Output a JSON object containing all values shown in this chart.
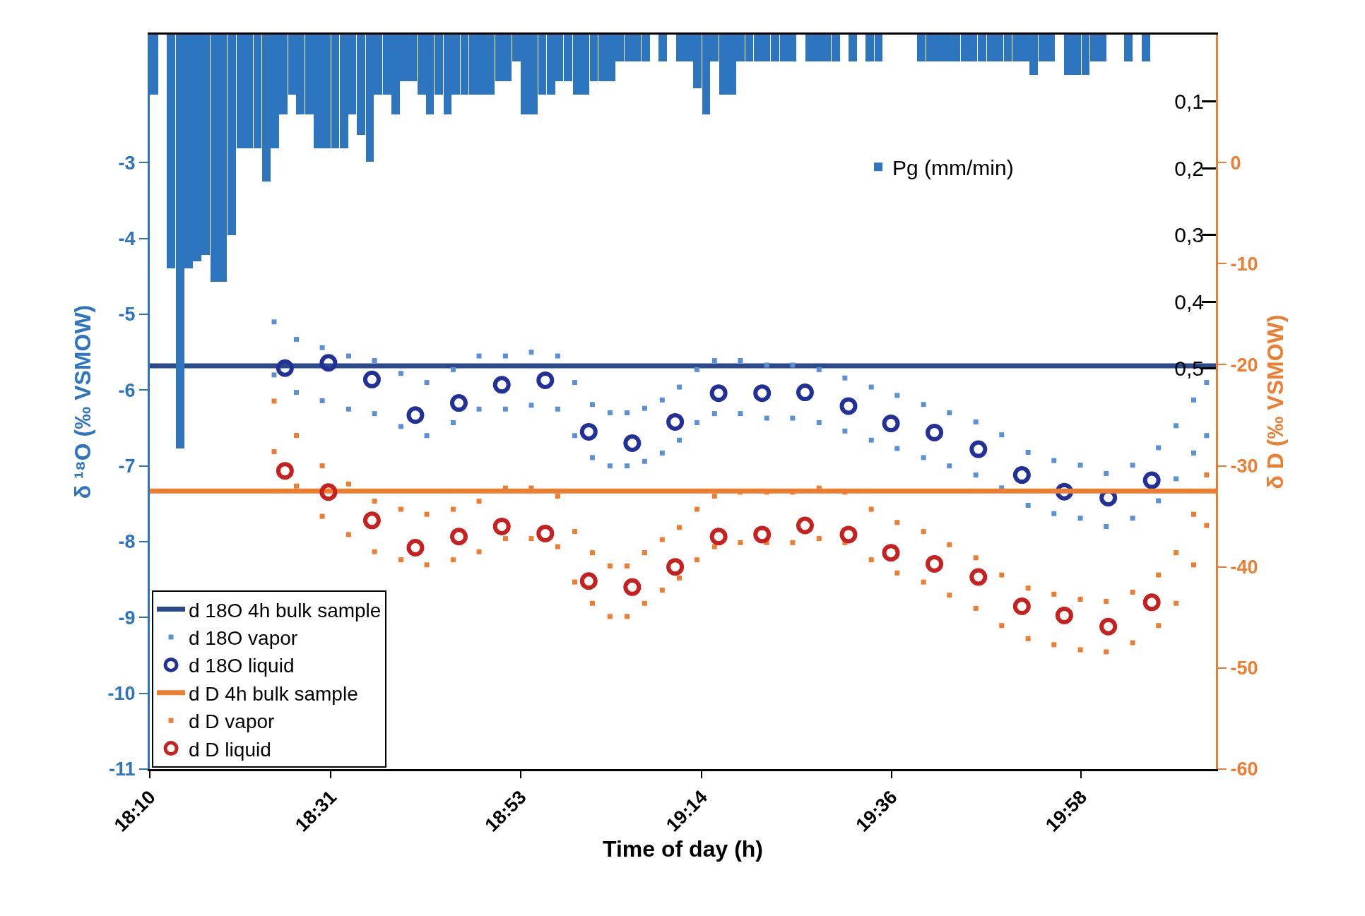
{
  "chart_data": {
    "type": "scatter",
    "xlabel": "Time of day (h)",
    "ylabel": "δ ¹⁸O (‰ VSMOW)",
    "y2label": "δ D (‰ VSMOW)",
    "legend": "bottom left",
    "xlim": [
      18.1667,
      20.227
    ],
    "xticks": [
      {
        "value": 18.1667,
        "label": "18:10"
      },
      {
        "value": 18.5167,
        "label": "18:31"
      },
      {
        "value": 18.8833,
        "label": "18:53"
      },
      {
        "value": 19.2333,
        "label": "19:14"
      },
      {
        "value": 19.6,
        "label": "19:36"
      },
      {
        "value": 19.9667,
        "label": "19:58"
      }
    ],
    "ylim": [
      -11,
      -1.31
    ],
    "yticks": [
      -11,
      -10,
      -9,
      -8,
      -7,
      -6,
      -5,
      -4,
      -3
    ],
    "y2lim": [
      -60,
      12.65
    ],
    "y2ticks": [
      -60,
      -50,
      -40,
      -30,
      -20,
      -10,
      0
    ],
    "y3lim": [
      1.1,
      0
    ],
    "y3ticks": [
      {
        "value": 0.1,
        "label": "0,1"
      },
      {
        "value": 0.2,
        "label": "0,2"
      },
      {
        "value": 0.3,
        "label": "0,3"
      },
      {
        "value": 0.4,
        "label": "0,4"
      },
      {
        "value": 0.5,
        "label": "0,5"
      }
    ],
    "series": [
      {
        "name": "Pg (mm/min)",
        "type": "bar",
        "axis": "y3",
        "color": "#2e75c0",
        "x": [
          18.175,
          18.208,
          18.225,
          18.242,
          18.258,
          18.275,
          18.292,
          18.308,
          18.325,
          18.342,
          18.358,
          18.375,
          18.392,
          18.408,
          18.425,
          18.442,
          18.458,
          18.475,
          18.492,
          18.508,
          18.525,
          18.542,
          18.558,
          18.575,
          18.592,
          18.608,
          18.625,
          18.642,
          18.658,
          18.675,
          18.692,
          18.708,
          18.725,
          18.742,
          18.758,
          18.775,
          18.792,
          18.808,
          18.825,
          18.842,
          18.858,
          18.875,
          18.892,
          18.908,
          18.925,
          18.942,
          18.958,
          18.975,
          18.992,
          19.008,
          19.025,
          19.042,
          19.058,
          19.075,
          19.092,
          19.108,
          19.125,
          19.158,
          19.192,
          19.208,
          19.225,
          19.242,
          19.258,
          19.275,
          19.292,
          19.308,
          19.325,
          19.342,
          19.358,
          19.375,
          19.392,
          19.408,
          19.442,
          19.458,
          19.475,
          19.492,
          19.525,
          19.558,
          19.575,
          19.658,
          19.675,
          19.692,
          19.708,
          19.725,
          19.742,
          19.758,
          19.775,
          19.792,
          19.808,
          19.825,
          19.842,
          19.858,
          19.875,
          19.892,
          19.908,
          19.942,
          19.958,
          19.975,
          19.992,
          20.008,
          20.058,
          20.092
        ],
        "values": [
          0.09,
          0.35,
          0.62,
          0.35,
          0.34,
          0.33,
          0.37,
          0.37,
          0.3,
          0.17,
          0.17,
          0.17,
          0.22,
          0.17,
          0.12,
          0.09,
          0.12,
          0.12,
          0.17,
          0.17,
          0.17,
          0.17,
          0.12,
          0.15,
          0.19,
          0.09,
          0.09,
          0.12,
          0.07,
          0.07,
          0.09,
          0.12,
          0.09,
          0.12,
          0.09,
          0.09,
          0.09,
          0.09,
          0.09,
          0.07,
          0.07,
          0.04,
          0.12,
          0.12,
          0.09,
          0.09,
          0.07,
          0.07,
          0.09,
          0.09,
          0.07,
          0.07,
          0.07,
          0.04,
          0.04,
          0.04,
          0.04,
          0.04,
          0.04,
          0.04,
          0.08,
          0.12,
          0.04,
          0.09,
          0.09,
          0.04,
          0.04,
          0.04,
          0.04,
          0.04,
          0.04,
          0.04,
          0.04,
          0.04,
          0.04,
          0.04,
          0.04,
          0.04,
          0.04,
          0.04,
          0.04,
          0.04,
          0.04,
          0.04,
          0.04,
          0.04,
          0.04,
          0.04,
          0.04,
          0.04,
          0.04,
          0.04,
          0.06,
          0.04,
          0.04,
          0.06,
          0.06,
          0.06,
          0.04,
          0.04,
          0.04,
          0.04
        ]
      },
      {
        "name": "d 18O 4h bulk sample",
        "type": "line",
        "axis": "y",
        "color": "#2b4a8c",
        "marker": "none",
        "x": [
          18.1667,
          20.227
        ],
        "values": [
          -5.68,
          -5.68
        ]
      },
      {
        "name": "d 18O vapor",
        "axis": "y",
        "color": "#5b8fd6",
        "marker": "square",
        "x": [
          18.407,
          18.407,
          18.45,
          18.45,
          18.5,
          18.5,
          18.551,
          18.551,
          18.601,
          18.601,
          18.652,
          18.652,
          18.702,
          18.702,
          18.753,
          18.753,
          18.803,
          18.803,
          18.854,
          18.854,
          18.904,
          18.904,
          18.955,
          18.955,
          18.988,
          18.988,
          19.022,
          19.022,
          19.056,
          19.056,
          19.089,
          19.089,
          19.123,
          19.123,
          19.157,
          19.157,
          19.19,
          19.19,
          19.224,
          19.224,
          19.258,
          19.258,
          19.308,
          19.308,
          19.359,
          19.359,
          19.409,
          19.409,
          19.46,
          19.46,
          19.51,
          19.51,
          19.561,
          19.561,
          19.611,
          19.611,
          19.662,
          19.662,
          19.712,
          19.712,
          19.763,
          19.763,
          19.813,
          19.813,
          19.864,
          19.864,
          19.914,
          19.914,
          19.965,
          19.965,
          20.015,
          20.015,
          20.066,
          20.066,
          20.116,
          20.116,
          20.15,
          20.15,
          20.184,
          20.184,
          20.209,
          20.209
        ],
        "values": [
          -5.1,
          -5.8,
          -5.33,
          -6.03,
          -5.44,
          -6.14,
          -5.55,
          -6.25,
          -5.61,
          -6.31,
          -5.78,
          -6.48,
          -5.9,
          -6.6,
          -5.73,
          -6.43,
          -5.55,
          -6.25,
          -5.55,
          -6.25,
          -5.5,
          -6.2,
          -5.55,
          -6.25,
          -5.9,
          -6.6,
          -6.19,
          -6.89,
          -6.3,
          -7.0,
          -6.3,
          -7.0,
          -6.24,
          -6.94,
          -6.13,
          -6.83,
          -5.96,
          -6.66,
          -5.73,
          -6.43,
          -5.61,
          -6.31,
          -5.61,
          -6.31,
          -5.67,
          -6.37,
          -5.67,
          -6.37,
          -5.73,
          -6.43,
          -5.84,
          -6.54,
          -5.96,
          -6.66,
          -6.07,
          -6.77,
          -6.19,
          -6.89,
          -6.3,
          -7.0,
          -6.42,
          -7.12,
          -6.59,
          -7.29,
          -6.82,
          -7.52,
          -6.93,
          -7.63,
          -6.99,
          -7.69,
          -7.1,
          -7.8,
          -6.99,
          -7.69,
          -6.76,
          -7.46,
          -6.47,
          -7.17,
          -6.13,
          -6.83,
          -5.9,
          -6.6
        ]
      },
      {
        "name": "d 18O liquid",
        "type": "scatter",
        "axis": "y",
        "color": "#22319a",
        "marker": "circle",
        "x": [
          18.428,
          18.512,
          18.596,
          18.68,
          18.764,
          18.847,
          18.931,
          19.015,
          19.099,
          19.182,
          19.266,
          19.35,
          19.433,
          19.517,
          19.599,
          19.683,
          19.768,
          19.852,
          19.934,
          20.019,
          20.103
        ],
        "values": [
          -5.71,
          -5.64,
          -5.86,
          -6.33,
          -6.17,
          -5.93,
          -5.87,
          -6.55,
          -6.7,
          -6.42,
          -6.04,
          -6.04,
          -6.03,
          -6.21,
          -6.44,
          -6.56,
          -6.78,
          -7.12,
          -7.34,
          -7.42,
          -7.19
        ]
      },
      {
        "name": "d D 4h bulk sample",
        "type": "line",
        "axis": "y2",
        "color": "#ed7d31",
        "marker": "none",
        "x": [
          18.1667,
          20.227
        ],
        "values": [
          -32.5,
          -32.5
        ]
      },
      {
        "name": "d D vapor",
        "axis": "y2",
        "color": "#ed7d31",
        "marker": "square",
        "x": [
          18.407,
          18.407,
          18.45,
          18.45,
          18.5,
          18.5,
          18.551,
          18.551,
          18.601,
          18.601,
          18.652,
          18.652,
          18.702,
          18.702,
          18.753,
          18.753,
          18.803,
          18.803,
          18.854,
          18.854,
          18.904,
          18.904,
          18.955,
          18.955,
          18.988,
          18.988,
          19.022,
          19.022,
          19.056,
          19.056,
          19.089,
          19.089,
          19.123,
          19.123,
          19.157,
          19.157,
          19.19,
          19.19,
          19.224,
          19.224,
          19.258,
          19.258,
          19.308,
          19.308,
          19.359,
          19.359,
          19.409,
          19.409,
          19.46,
          19.46,
          19.51,
          19.51,
          19.561,
          19.561,
          19.611,
          19.611,
          19.662,
          19.662,
          19.712,
          19.712,
          19.763,
          19.763,
          19.813,
          19.813,
          19.864,
          19.864,
          19.914,
          19.914,
          19.965,
          19.965,
          20.015,
          20.015,
          20.066,
          20.066,
          20.116,
          20.116,
          20.15,
          20.15,
          20.184,
          20.184,
          20.209,
          20.209
        ],
        "values": [
          -23.6,
          -28.6,
          -27.0,
          -32.0,
          -30.0,
          -35.0,
          -31.8,
          -36.8,
          -33.5,
          -38.5,
          -34.3,
          -39.3,
          -34.8,
          -39.8,
          -34.3,
          -39.3,
          -33.5,
          -38.5,
          -32.2,
          -37.2,
          -32.2,
          -37.2,
          -33.0,
          -38.0,
          -36.5,
          -41.5,
          -38.6,
          -43.6,
          -39.9,
          -44.9,
          -39.9,
          -44.9,
          -38.6,
          -43.6,
          -37.3,
          -42.3,
          -36.1,
          -41.1,
          -34.3,
          -39.3,
          -33.0,
          -38.0,
          -32.6,
          -37.6,
          -32.6,
          -37.6,
          -32.6,
          -37.6,
          -32.2,
          -37.2,
          -32.6,
          -37.6,
          -34.3,
          -39.3,
          -35.6,
          -40.6,
          -36.5,
          -41.5,
          -37.8,
          -42.8,
          -39.1,
          -44.1,
          -40.8,
          -45.8,
          -42.1,
          -47.1,
          -42.7,
          -47.7,
          -43.2,
          -48.2,
          -43.4,
          -48.4,
          -42.5,
          -47.5,
          -40.8,
          -45.8,
          -38.6,
          -43.6,
          -34.8,
          -39.8,
          -30.9,
          -35.9
        ]
      },
      {
        "name": "d D liquid",
        "type": "scatter",
        "axis": "y2",
        "color": "#c8201e",
        "marker": "circle",
        "x": [
          18.428,
          18.512,
          18.596,
          18.68,
          18.764,
          18.847,
          18.931,
          19.015,
          19.099,
          19.182,
          19.266,
          19.35,
          19.433,
          19.517,
          19.599,
          19.683,
          19.768,
          19.852,
          19.934,
          20.019,
          20.103
        ],
        "values": [
          -30.5,
          -32.6,
          -35.4,
          -38.1,
          -37.0,
          -36.0,
          -36.7,
          -41.4,
          -42.0,
          -40.0,
          -37.0,
          -36.8,
          -35.9,
          -36.8,
          -38.6,
          -39.7,
          -41.0,
          -43.9,
          -44.8,
          -45.9,
          -43.5
        ]
      }
    ]
  }
}
